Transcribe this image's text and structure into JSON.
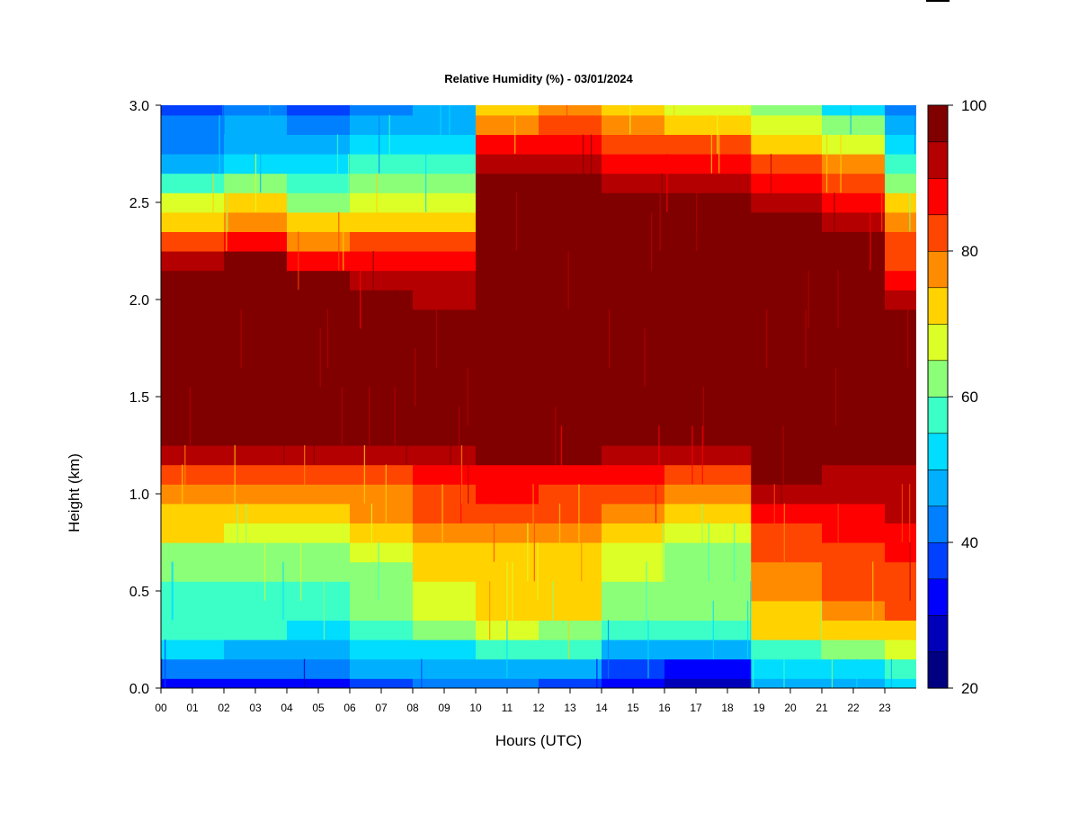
{
  "chart_data": {
    "type": "heatmap",
    "title": "Relative Humidity (%) - 03/01/2024",
    "xlabel": "Hours (UTC)",
    "ylabel": "Height (km)",
    "xlim": [
      0,
      24
    ],
    "ylim": [
      0,
      3.0
    ],
    "x_tick_labels": [
      "00",
      "01",
      "02",
      "03",
      "04",
      "05",
      "06",
      "07",
      "08",
      "09",
      "10",
      "11",
      "12",
      "13",
      "14",
      "15",
      "16",
      "17",
      "18",
      "19",
      "20",
      "21",
      "22",
      "23"
    ],
    "y_tick_labels": [
      "0.0",
      "0.5",
      "1.0",
      "1.5",
      "2.0",
      "2.5",
      "3.0"
    ],
    "y_tick_values": [
      0,
      0.5,
      1.0,
      1.5,
      2.0,
      2.5,
      3.0
    ],
    "colorbar": {
      "range": [
        20,
        100
      ],
      "step": 5,
      "tick_values": [
        20,
        40,
        60,
        80,
        100
      ],
      "tick_labels": [
        "20",
        "40",
        "60",
        "80",
        "100"
      ],
      "colors": [
        "#000080",
        "#0000B8",
        "#0000FF",
        "#0040FF",
        "#0080FF",
        "#00B0FF",
        "#00DDFF",
        "#3CFFC8",
        "#8CFF78",
        "#DCFF28",
        "#FFD200",
        "#FF8C00",
        "#FF4600",
        "#FF0000",
        "#B40000",
        "#800000"
      ]
    },
    "heights_km": [
      0.0,
      0.1,
      0.2,
      0.3,
      0.4,
      0.5,
      0.6,
      0.7,
      0.8,
      0.9,
      1.0,
      1.1,
      1.2,
      1.3,
      1.4,
      1.5,
      1.6,
      1.7,
      1.8,
      1.9,
      2.0,
      2.1,
      2.2,
      2.3,
      2.4,
      2.5,
      2.6,
      2.7,
      2.8,
      2.9,
      3.0
    ],
    "time_blocks": [
      {
        "hours": [
          0,
          2
        ],
        "rh": [
          32,
          42,
          52,
          56,
          56,
          58,
          60,
          62,
          70,
          72,
          78,
          83,
          90,
          98,
          100,
          100,
          100,
          100,
          100,
          100,
          100,
          98,
          90,
          80,
          72,
          65,
          55,
          48,
          44,
          40,
          37
        ]
      },
      {
        "hours": [
          2,
          4
        ],
        "rh": [
          34,
          42,
          48,
          55,
          57,
          58,
          60,
          62,
          68,
          72,
          76,
          80,
          90,
          98,
          100,
          100,
          100,
          100,
          100,
          100,
          100,
          100,
          97,
          88,
          78,
          70,
          60,
          52,
          48,
          45,
          42
        ]
      },
      {
        "hours": [
          4,
          6
        ],
        "rh": [
          32,
          40,
          48,
          54,
          56,
          58,
          60,
          62,
          68,
          72,
          78,
          82,
          92,
          100,
          100,
          100,
          100,
          100,
          100,
          100,
          98,
          95,
          88,
          78,
          70,
          62,
          55,
          50,
          45,
          40,
          36
        ]
      },
      {
        "hours": [
          6,
          8
        ],
        "rh": [
          38,
          45,
          50,
          58,
          60,
          62,
          64,
          68,
          72,
          76,
          78,
          80,
          90,
          98,
          100,
          100,
          100,
          100,
          98,
          96,
          95,
          92,
          86,
          80,
          72,
          68,
          60,
          55,
          50,
          47,
          44
        ]
      },
      {
        "hours": [
          8,
          10
        ],
        "rh": [
          42,
          48,
          54,
          62,
          66,
          68,
          70,
          72,
          76,
          80,
          82,
          85,
          92,
          99,
          100,
          100,
          100,
          98,
          96,
          95,
          94,
          92,
          88,
          82,
          74,
          68,
          60,
          55,
          52,
          48,
          45
        ]
      },
      {
        "hours": [
          10,
          12
        ],
        "rh": [
          42,
          48,
          58,
          68,
          72,
          72,
          72,
          74,
          78,
          82,
          85,
          88,
          95,
          100,
          100,
          100,
          100,
          100,
          100,
          100,
          100,
          100,
          100,
          100,
          100,
          98,
          95,
          92,
          85,
          78,
          72
        ]
      },
      {
        "hours": [
          12,
          14
        ],
        "rh": [
          38,
          46,
          55,
          64,
          70,
          70,
          70,
          72,
          76,
          80,
          84,
          88,
          95,
          100,
          100,
          100,
          100,
          100,
          100,
          100,
          100,
          100,
          100,
          100,
          100,
          98,
          95,
          90,
          85,
          80,
          76
        ]
      },
      {
        "hours": [
          14,
          16
        ],
        "rh": [
          30,
          38,
          48,
          58,
          62,
          64,
          65,
          68,
          72,
          76,
          80,
          85,
          94,
          100,
          100,
          100,
          100,
          100,
          100,
          100,
          100,
          100,
          100,
          100,
          98,
          96,
          92,
          88,
          82,
          76,
          72
        ]
      },
      {
        "hours": [
          16,
          18.75
        ],
        "rh": [
          26,
          34,
          46,
          58,
          60,
          60,
          62,
          64,
          68,
          72,
          76,
          82,
          92,
          100,
          100,
          100,
          100,
          100,
          100,
          100,
          100,
          100,
          100,
          100,
          100,
          98,
          94,
          88,
          80,
          72,
          66
        ]
      },
      {
        "hours": [
          18.75,
          21
        ],
        "rh": [
          46,
          52,
          58,
          70,
          74,
          76,
          78,
          80,
          84,
          88,
          92,
          96,
          100,
          100,
          100,
          100,
          100,
          100,
          100,
          100,
          100,
          100,
          100,
          98,
          95,
          92,
          86,
          80,
          72,
          66,
          60
        ]
      },
      {
        "hours": [
          21,
          23
        ],
        "rh": [
          48,
          54,
          62,
          72,
          78,
          80,
          82,
          84,
          86,
          88,
          90,
          94,
          98,
          100,
          100,
          100,
          100,
          100,
          100,
          100,
          100,
          100,
          98,
          95,
          92,
          88,
          82,
          76,
          68,
          60,
          54
        ]
      },
      {
        "hours": [
          23,
          24
        ],
        "rh": [
          52,
          58,
          66,
          74,
          80,
          82,
          84,
          86,
          88,
          90,
          92,
          94,
          96,
          98,
          100,
          100,
          100,
          100,
          98,
          95,
          92,
          88,
          84,
          80,
          75,
          70,
          64,
          58,
          52,
          46,
          42
        ]
      }
    ]
  }
}
